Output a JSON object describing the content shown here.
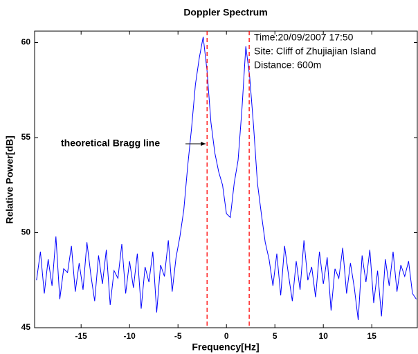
{
  "chart_data": {
    "type": "line",
    "title": "Doppler Spectrum",
    "x_label": "Frequency[Hz]",
    "y_label": "Relative Power[dB]",
    "xlim": [
      -19.8,
      19.7
    ],
    "ylim": [
      45,
      60.6
    ],
    "xticks": [
      -15,
      -10,
      -5,
      0,
      5,
      10,
      15
    ],
    "yticks": [
      45,
      50,
      55,
      60
    ],
    "grid": false,
    "x": [
      -19.6,
      -19.2,
      -18.8,
      -18.4,
      -18,
      -17.6,
      -17.2,
      -16.8,
      -16.4,
      -16,
      -15.6,
      -15.2,
      -14.8,
      -14.4,
      -14,
      -13.6,
      -13.2,
      -12.8,
      -12.4,
      -12,
      -11.6,
      -11.2,
      -10.8,
      -10.4,
      -10,
      -9.6,
      -9.2,
      -8.8,
      -8.4,
      -8,
      -7.6,
      -7.2,
      -6.8,
      -6.4,
      -6,
      -5.6,
      -5.2,
      -4.8,
      -4.4,
      -4,
      -3.6,
      -3.2,
      -2.8,
      -2.4,
      -2,
      -1.6,
      -1.2,
      -0.8,
      -0.4,
      0,
      0.4,
      0.8,
      1.2,
      1.6,
      2,
      2.4,
      2.8,
      3.2,
      3.6,
      4,
      4.4,
      4.8,
      5.2,
      5.6,
      6,
      6.4,
      6.8,
      7.2,
      7.6,
      8,
      8.4,
      8.8,
      9.2,
      9.6,
      10,
      10.4,
      10.8,
      11.2,
      11.6,
      12,
      12.4,
      12.8,
      13.2,
      13.6,
      14,
      14.4,
      14.8,
      15.2,
      15.6,
      16,
      16.4,
      16.8,
      17.2,
      17.6,
      18,
      18.4,
      18.8,
      19.2,
      19.6
    ],
    "series": [
      {
        "color": "#0000ff",
        "values": [
          47.5,
          49.0,
          46.8,
          48.6,
          47.2,
          49.8,
          46.5,
          48.1,
          47.9,
          49.3,
          46.9,
          48.4,
          47.0,
          49.5,
          47.8,
          46.4,
          48.8,
          47.3,
          49.1,
          46.2,
          48.0,
          47.6,
          49.4,
          46.8,
          48.5,
          47.1,
          48.9,
          46.0,
          48.2,
          47.4,
          49.0,
          45.8,
          48.3,
          47.7,
          49.6,
          46.9,
          48.7,
          49.8,
          51.2,
          53.5,
          55.5,
          57.8,
          59.2,
          60.3,
          58.5,
          55.8,
          54.2,
          53.2,
          52.5,
          51.0,
          50.8,
          52.6,
          53.8,
          56.5,
          59.8,
          58.2,
          55.6,
          52.6,
          51.0,
          49.5,
          48.6,
          47.2,
          48.9,
          46.7,
          49.3,
          47.8,
          46.4,
          48.5,
          47.0,
          49.6,
          47.5,
          48.2,
          46.6,
          49.0,
          47.3,
          48.7,
          45.9,
          48.1,
          47.6,
          49.2,
          46.8,
          48.4,
          47.1,
          45.4,
          48.8,
          47.4,
          49.1,
          46.3,
          48.0,
          45.6,
          48.6,
          47.2,
          49.0,
          46.9,
          48.3,
          47.7,
          48.5,
          46.8,
          46.5
        ]
      }
    ],
    "bragg_lines": [
      {
        "x": -2.0,
        "color": "#ff0000"
      },
      {
        "x": 2.35,
        "color": "#ff0000"
      }
    ],
    "annotations": [
      "theoretical Bragg line",
      "Time:20/09/2007 17:50",
      "Site: Cliff of Zhujiajian Island",
      "Distance: 600m"
    ]
  }
}
